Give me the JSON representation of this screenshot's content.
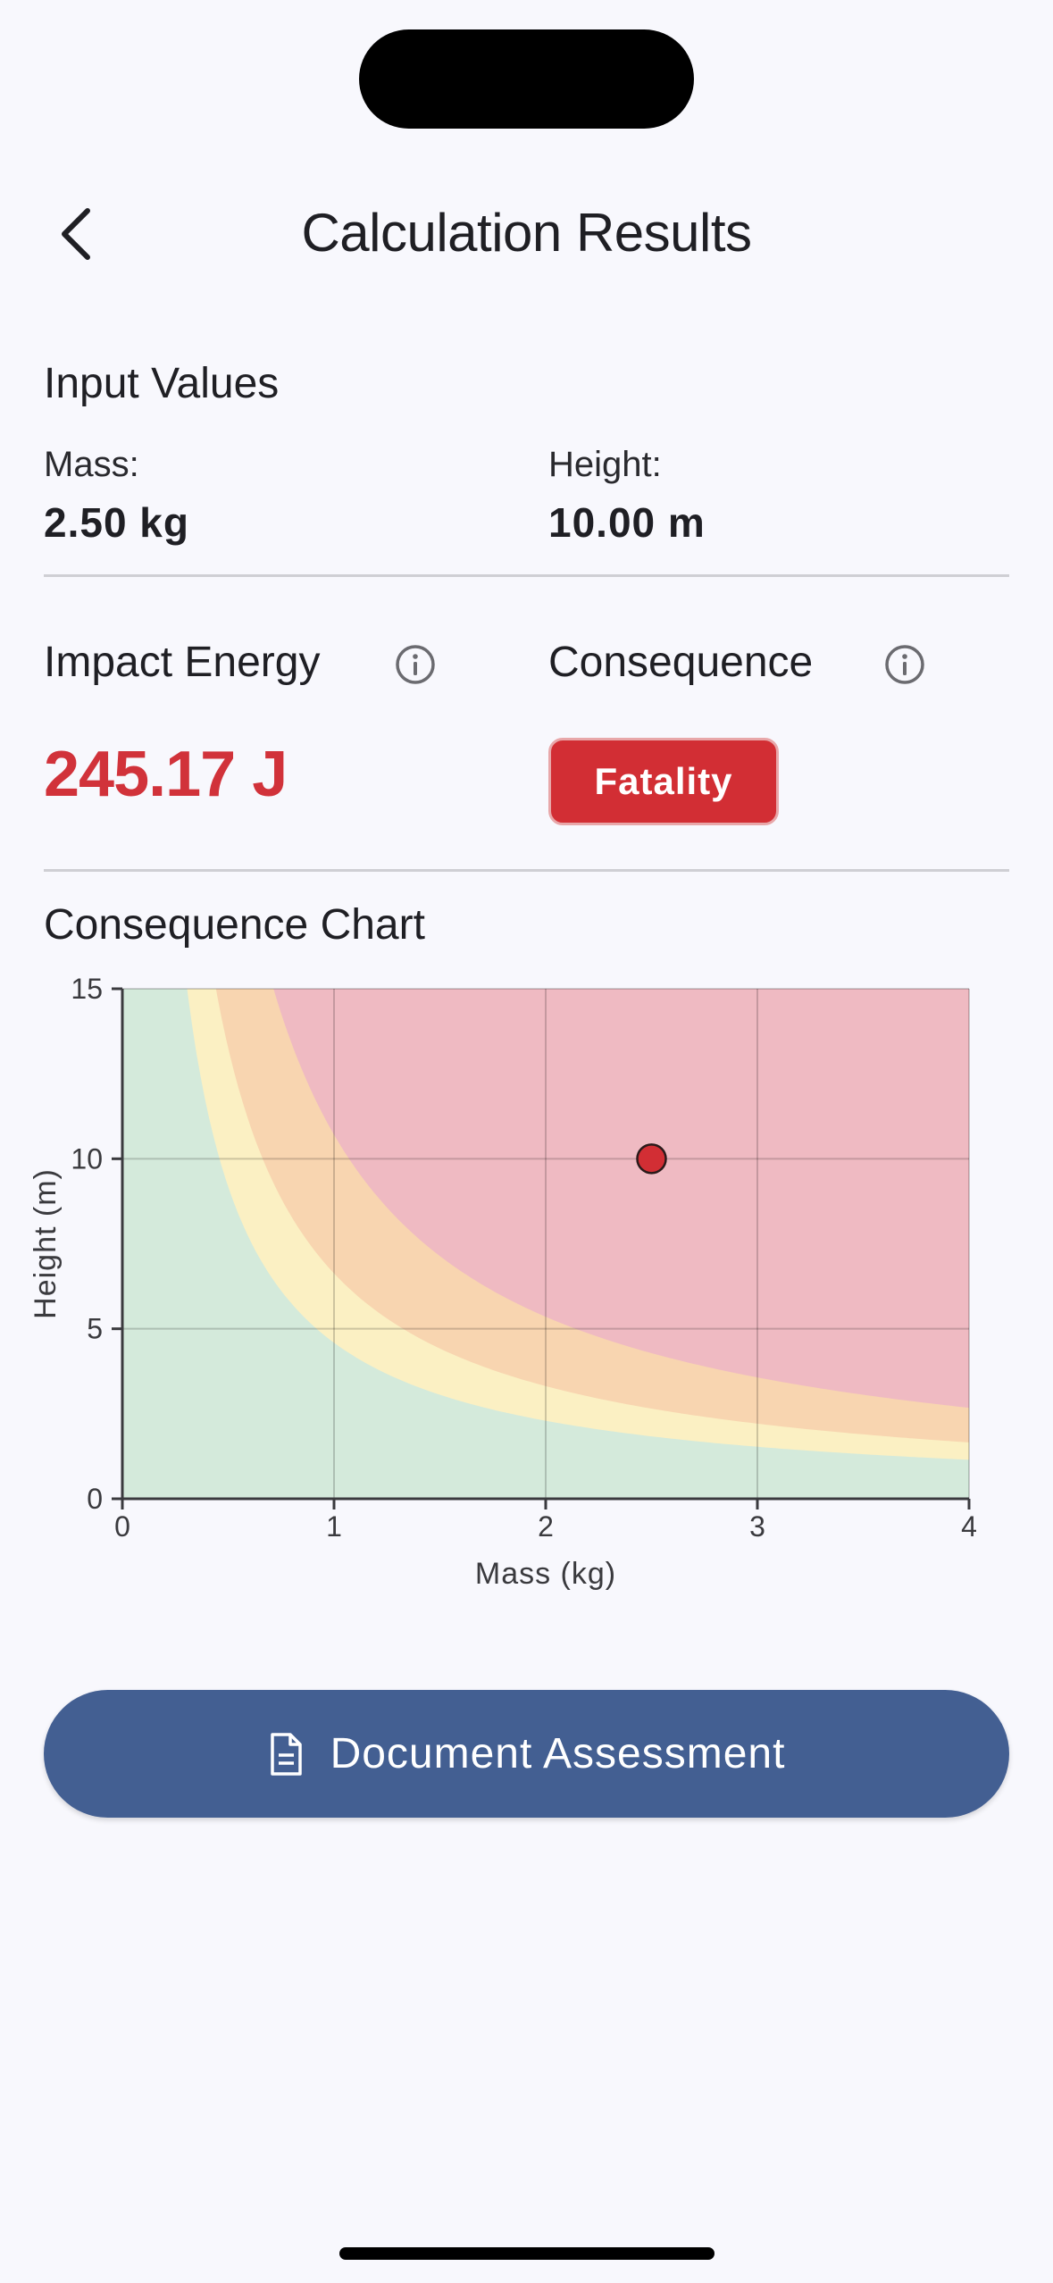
{
  "header": {
    "title": "Calculation Results"
  },
  "inputs": {
    "section_title": "Input Values",
    "mass_label": "Mass:",
    "mass_value": "2.50 kg",
    "height_label": "Height:",
    "height_value": "10.00 m"
  },
  "results": {
    "energy_label": "Impact Energy",
    "energy_value": "245.17 J",
    "consequence_label": "Consequence",
    "consequence_value": "Fatality"
  },
  "chart_section": {
    "title": "Consequence Chart"
  },
  "chart_data": {
    "type": "area",
    "xlabel": "Mass (kg)",
    "ylabel": "Height (m)",
    "xlim": [
      0,
      4
    ],
    "ylim": [
      0,
      15
    ],
    "xticks": [
      0,
      1,
      2,
      3,
      4
    ],
    "yticks": [
      0,
      5,
      10,
      15
    ],
    "grid": true,
    "zones_energy_thresholds_J": [
      45,
      65,
      105
    ],
    "zone_colors": [
      "#d4eadb",
      "#fbf0c3",
      "#f8d5b0",
      "#efbac2"
    ],
    "point": {
      "x": 2.5,
      "y": 10,
      "color": "#d22e34"
    }
  },
  "actions": {
    "document_label": "Document Assessment"
  },
  "colors": {
    "accent": "#435f92",
    "danger": "#d22e34"
  }
}
